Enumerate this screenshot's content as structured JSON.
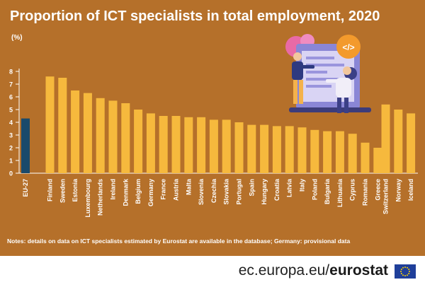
{
  "header": {
    "title": "Proportion of ICT specialists in total employment, 2020",
    "unit": "(%)"
  },
  "notes": "Notes: details on data on ICT specialists estimated by Eurostat are available in the database; Germany: provisional data",
  "footer": {
    "source_prefix": "ec.europa.eu/",
    "source_brand": "eurostat"
  },
  "illustration": {
    "badge_text": "</>"
  },
  "colors": {
    "background": "#b5702a",
    "bar": "#f6b93d",
    "bar_highlight": "#1a4a6b",
    "text": "#ffffff"
  },
  "chart_data": {
    "type": "bar",
    "title": "Proportion of ICT specialists in total employment, 2020",
    "ylabel": "(%)",
    "xlabel": "",
    "ylim": [
      0,
      8
    ],
    "yticks": [
      0,
      1,
      2,
      3,
      4,
      5,
      6,
      7,
      8
    ],
    "grid": false,
    "categories": [
      "EU-27",
      "Finland",
      "Sweden",
      "Estonia",
      "Luxembourg",
      "Netherlands",
      "Ireland",
      "Denmark",
      "Belgium",
      "Germany",
      "France",
      "Austria",
      "Malta",
      "Slovenia",
      "Czechia",
      "Slovakia",
      "Portugal",
      "Spain",
      "Hungary",
      "Croatia",
      "Latvia",
      "Italy",
      "Poland",
      "Bulgaria",
      "Lithuania",
      "Cyprus",
      "Romania",
      "Greece",
      "Switzerland",
      "Norway",
      "Iceland"
    ],
    "values": [
      4.3,
      7.6,
      7.5,
      6.5,
      6.3,
      5.9,
      5.7,
      5.5,
      5.0,
      4.7,
      4.5,
      4.5,
      4.4,
      4.4,
      4.2,
      4.2,
      4.0,
      3.8,
      3.8,
      3.7,
      3.7,
      3.6,
      3.4,
      3.3,
      3.3,
      3.1,
      2.4,
      2.0,
      5.4,
      5.0,
      4.7
    ],
    "highlight": [
      "EU-27"
    ]
  }
}
